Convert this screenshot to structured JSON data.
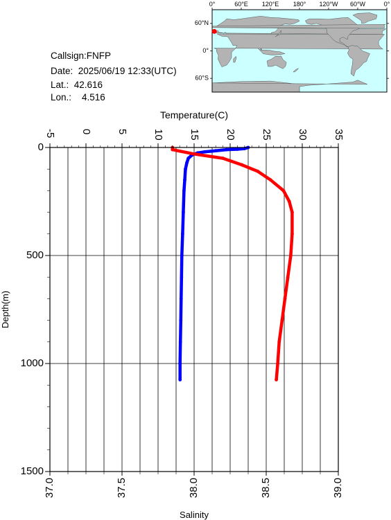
{
  "info": {
    "callsign": "Callsign:FNFP",
    "date": "Date:  2025/06/19 12:33(UTC)",
    "lat": "Lat.:  42.616",
    "lon": "Lon.:    4.516"
  },
  "map": {
    "top_labels": [
      "0°",
      "60°E",
      "120°E",
      "180°",
      "120°W",
      "60°W",
      "0°"
    ],
    "side_labels": [
      "60°N",
      "0°",
      "60°S"
    ],
    "ocean_color": "#ccffff",
    "land_color": "#b3b3b3",
    "marker_color": "#ff0000",
    "marker_lat": 42.616,
    "marker_lon": 4.516
  },
  "chart_data": {
    "type": "line",
    "ylabel": "Depth(m)",
    "ylim": [
      1500,
      0
    ],
    "yticks": [
      "0",
      "500",
      "1000",
      "1500"
    ],
    "yticks_values": [
      0,
      500,
      1000,
      1500
    ],
    "temperature_axis": {
      "label": "Temperature(C)",
      "lim": [
        -5,
        35
      ],
      "ticks": [
        "-5",
        "0",
        "5",
        "10",
        "15",
        "20",
        "25",
        "30",
        "35"
      ],
      "tick_values": [
        -5,
        0,
        5,
        10,
        15,
        20,
        25,
        30,
        35
      ]
    },
    "salinity_axis": {
      "label": "Salinity",
      "lim": [
        37.0,
        39.0
      ],
      "ticks": [
        "37.0",
        "37.5",
        "38.0",
        "38.5",
        "39.0"
      ],
      "tick_values": [
        37.0,
        37.5,
        38.0,
        38.5,
        39.0
      ]
    },
    "grid": true,
    "series": [
      {
        "axis": "temperature",
        "color": "#0000ff",
        "points": [
          [
            22.5,
            0
          ],
          [
            22,
            5
          ],
          [
            21,
            8
          ],
          [
            19.5,
            10
          ],
          [
            18,
            15
          ],
          [
            16.5,
            20
          ],
          [
            15.5,
            25
          ],
          [
            14.7,
            35
          ],
          [
            14.2,
            50
          ],
          [
            14,
            70
          ],
          [
            13.8,
            100
          ],
          [
            13.7,
            150
          ],
          [
            13.6,
            200
          ],
          [
            13.5,
            300
          ],
          [
            13.4,
            400
          ],
          [
            13.3,
            500
          ],
          [
            13.25,
            600
          ],
          [
            13.2,
            700
          ],
          [
            13.15,
            800
          ],
          [
            13.1,
            900
          ],
          [
            13.05,
            1000
          ],
          [
            13.05,
            1075
          ]
        ]
      },
      {
        "axis": "salinity",
        "color": "#ff0000",
        "points": [
          [
            37.85,
            0
          ],
          [
            37.85,
            10
          ],
          [
            38.0,
            30
          ],
          [
            38.2,
            50
          ],
          [
            38.33,
            80
          ],
          [
            38.44,
            110
          ],
          [
            38.53,
            150
          ],
          [
            38.62,
            200
          ],
          [
            38.66,
            250
          ],
          [
            38.68,
            300
          ],
          [
            38.68,
            400
          ],
          [
            38.67,
            500
          ],
          [
            38.65,
            600
          ],
          [
            38.63,
            700
          ],
          [
            38.61,
            800
          ],
          [
            38.59,
            900
          ],
          [
            38.58,
            1000
          ],
          [
            38.57,
            1075
          ]
        ]
      }
    ]
  }
}
